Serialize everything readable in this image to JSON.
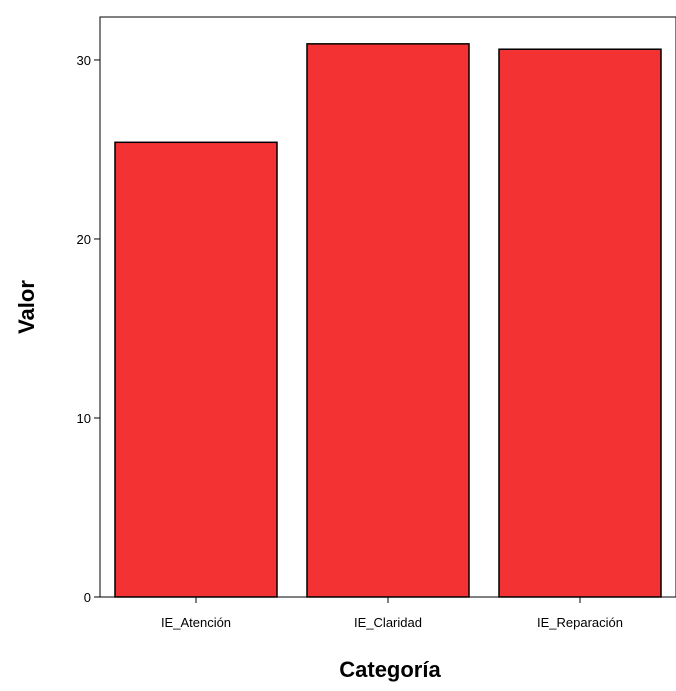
{
  "chart_data": {
    "type": "bar",
    "title": "",
    "xlabel": "Categoría",
    "ylabel": "Valor",
    "categories": [
      "IE_Atención",
      "IE_Claridad",
      "IE_Reparación"
    ],
    "values": [
      25.4,
      30.9,
      30.6
    ],
    "ylim": [
      0,
      32.4
    ],
    "yticks": [
      0,
      10,
      20,
      30
    ],
    "grid": false,
    "legend": "none",
    "colors": {
      "bar_fill": "#f33333",
      "bar_stroke": "#000000",
      "background": "#ffffff"
    }
  }
}
